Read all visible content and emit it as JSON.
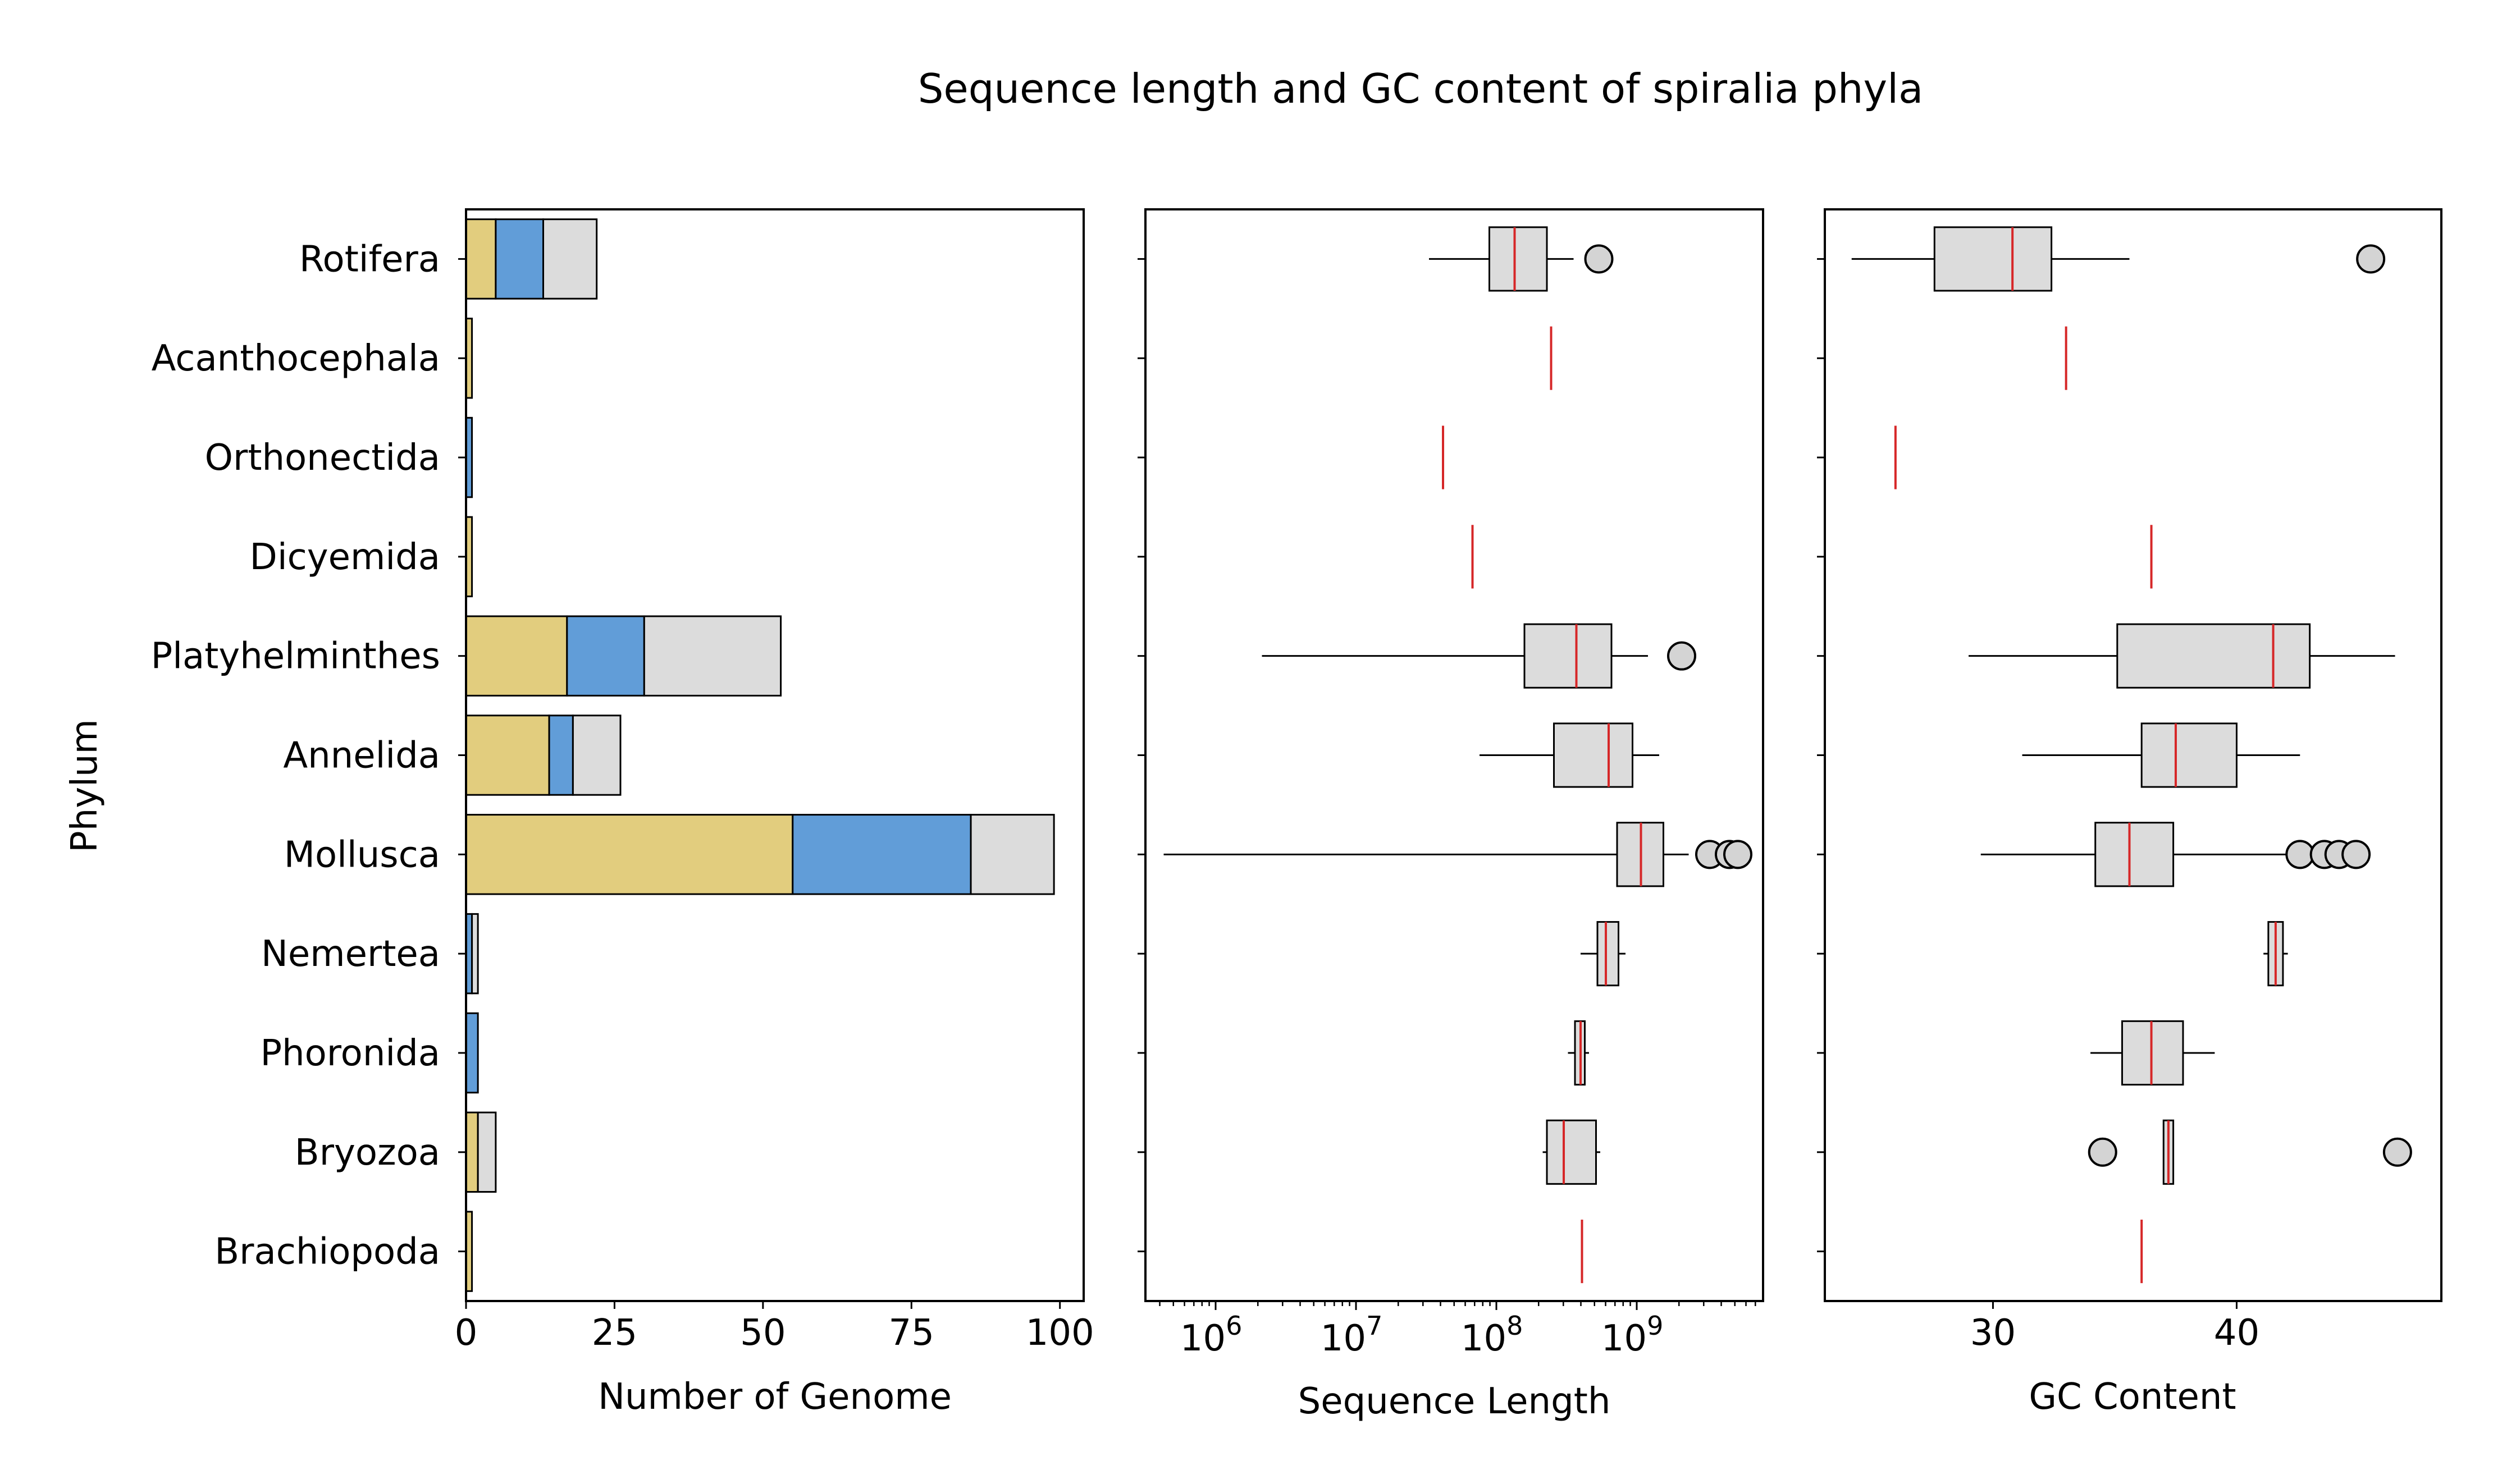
{
  "figure": {
    "title": "Sequence length and GC content of spiralia phyla"
  },
  "colors": {
    "bar_segment_1": "#e2cd7e",
    "bar_segment_2": "#619dd8",
    "bar_segment_3": "#dcdcdc",
    "box_fill": "#dcdcdc",
    "median": "#d62728",
    "outlier_fill": "#d4d4d4",
    "edge": "#000000"
  },
  "chart_data": [
    {
      "type": "bar",
      "orientation": "horizontal",
      "stacked": true,
      "title": "",
      "ylabel": "Phylum",
      "xlabel": "Number of Genome",
      "xlim": [
        0,
        104
      ],
      "xticks": [
        0,
        25,
        50,
        75,
        100
      ],
      "categories": [
        "Rotifera",
        "Acanthocephala",
        "Orthonectida",
        "Dicyemida",
        "Platyhelminthes",
        "Annelida",
        "Mollusca",
        "Nemertea",
        "Phoronida",
        "Bryozoa",
        "Brachiopoda"
      ],
      "series": [
        {
          "values": [
            5,
            1,
            0,
            1,
            17,
            14,
            55,
            0,
            0,
            2,
            1
          ]
        },
        {
          "values": [
            8,
            0,
            1,
            0,
            13,
            4,
            30,
            1,
            2,
            0,
            0
          ]
        },
        {
          "values": [
            9,
            0,
            0,
            0,
            23,
            8,
            14,
            1,
            0,
            3,
            0
          ]
        }
      ]
    },
    {
      "type": "box",
      "orientation": "horizontal",
      "xlabel": "Sequence Length",
      "xscale": "log",
      "xlim_log10": [
        5.5,
        9.9
      ],
      "xticks": [
        "10^6",
        "10^7",
        "10^8",
        "10^9"
      ],
      "categories": [
        "Rotifera",
        "Acanthocephala",
        "Orthonectida",
        "Dicyemida",
        "Platyhelminthes",
        "Annelida",
        "Mollusca",
        "Nemertea",
        "Phoronida",
        "Bryozoa",
        "Brachiopoda"
      ],
      "boxes_log10": [
        {
          "whislo": 7.52,
          "q1": 7.95,
          "med": 8.13,
          "q3": 8.36,
          "whishi": 8.55,
          "fliers": [
            8.73
          ]
        },
        {
          "whislo": 8.39,
          "q1": 8.39,
          "med": 8.39,
          "q3": 8.39,
          "whishi": 8.39,
          "fliers": []
        },
        {
          "whislo": 7.62,
          "q1": 7.62,
          "med": 7.62,
          "q3": 7.62,
          "whishi": 7.62,
          "fliers": []
        },
        {
          "whislo": 7.83,
          "q1": 7.83,
          "med": 7.83,
          "q3": 7.83,
          "whishi": 7.83,
          "fliers": []
        },
        {
          "whislo": 6.33,
          "q1": 8.2,
          "med": 8.57,
          "q3": 8.82,
          "whishi": 9.08,
          "fliers": [
            9.32
          ]
        },
        {
          "whislo": 7.88,
          "q1": 8.41,
          "med": 8.8,
          "q3": 8.97,
          "whishi": 9.16,
          "fliers": []
        },
        {
          "whislo": 5.63,
          "q1": 8.86,
          "med": 9.03,
          "q3": 9.19,
          "whishi": 9.37,
          "fliers": [
            9.52,
            9.66,
            9.72
          ]
        },
        {
          "whislo": 8.6,
          "q1": 8.72,
          "med": 8.78,
          "q3": 8.87,
          "whishi": 8.92,
          "fliers": []
        },
        {
          "whislo": 8.51,
          "q1": 8.56,
          "med": 8.6,
          "q3": 8.63,
          "whishi": 8.66,
          "fliers": []
        },
        {
          "whislo": 8.33,
          "q1": 8.36,
          "med": 8.48,
          "q3": 8.71,
          "whishi": 8.74,
          "fliers": []
        },
        {
          "whislo": 8.61,
          "q1": 8.61,
          "med": 8.61,
          "q3": 8.61,
          "whishi": 8.61,
          "fliers": []
        }
      ]
    },
    {
      "type": "box",
      "orientation": "horizontal",
      "xlabel": "GC Content",
      "xlim": [
        23.1,
        48.4
      ],
      "xticks": [
        30,
        40
      ],
      "categories": [
        "Rotifera",
        "Acanthocephala",
        "Orthonectida",
        "Dicyemida",
        "Platyhelminthes",
        "Annelida",
        "Mollusca",
        "Nemertea",
        "Phoronida",
        "Bryozoa",
        "Brachiopoda"
      ],
      "boxes": [
        {
          "whislo": 24.2,
          "q1": 27.6,
          "med": 30.8,
          "q3": 32.4,
          "whishi": 35.6,
          "fliers": [
            45.5
          ]
        },
        {
          "whislo": 33.0,
          "q1": 33.0,
          "med": 33.0,
          "q3": 33.0,
          "whishi": 33.0,
          "fliers": []
        },
        {
          "whislo": 26.0,
          "q1": 26.0,
          "med": 26.0,
          "q3": 26.0,
          "whishi": 26.0,
          "fliers": []
        },
        {
          "whislo": 36.5,
          "q1": 36.5,
          "med": 36.5,
          "q3": 36.5,
          "whishi": 36.5,
          "fliers": []
        },
        {
          "whislo": 29.0,
          "q1": 35.1,
          "med": 41.5,
          "q3": 43.0,
          "whishi": 46.5,
          "fliers": []
        },
        {
          "whislo": 31.2,
          "q1": 36.1,
          "med": 37.5,
          "q3": 40.0,
          "whishi": 42.6,
          "fliers": []
        },
        {
          "whislo": 29.5,
          "q1": 34.2,
          "med": 35.6,
          "q3": 37.4,
          "whishi": 42.4,
          "fliers": [
            42.6,
            43.6,
            44.2,
            44.9
          ]
        },
        {
          "whislo": 41.1,
          "q1": 41.3,
          "med": 41.6,
          "q3": 41.9,
          "whishi": 42.1,
          "fliers": []
        },
        {
          "whislo": 34.0,
          "q1": 35.3,
          "med": 36.5,
          "q3": 37.8,
          "whishi": 39.1,
          "fliers": []
        },
        {
          "whislo": 37.0,
          "q1": 37.0,
          "med": 37.2,
          "q3": 37.4,
          "whishi": 37.4,
          "fliers": [
            34.5,
            46.6
          ]
        },
        {
          "whislo": 36.1,
          "q1": 36.1,
          "med": 36.1,
          "q3": 36.1,
          "whishi": 36.1,
          "fliers": []
        }
      ]
    }
  ]
}
